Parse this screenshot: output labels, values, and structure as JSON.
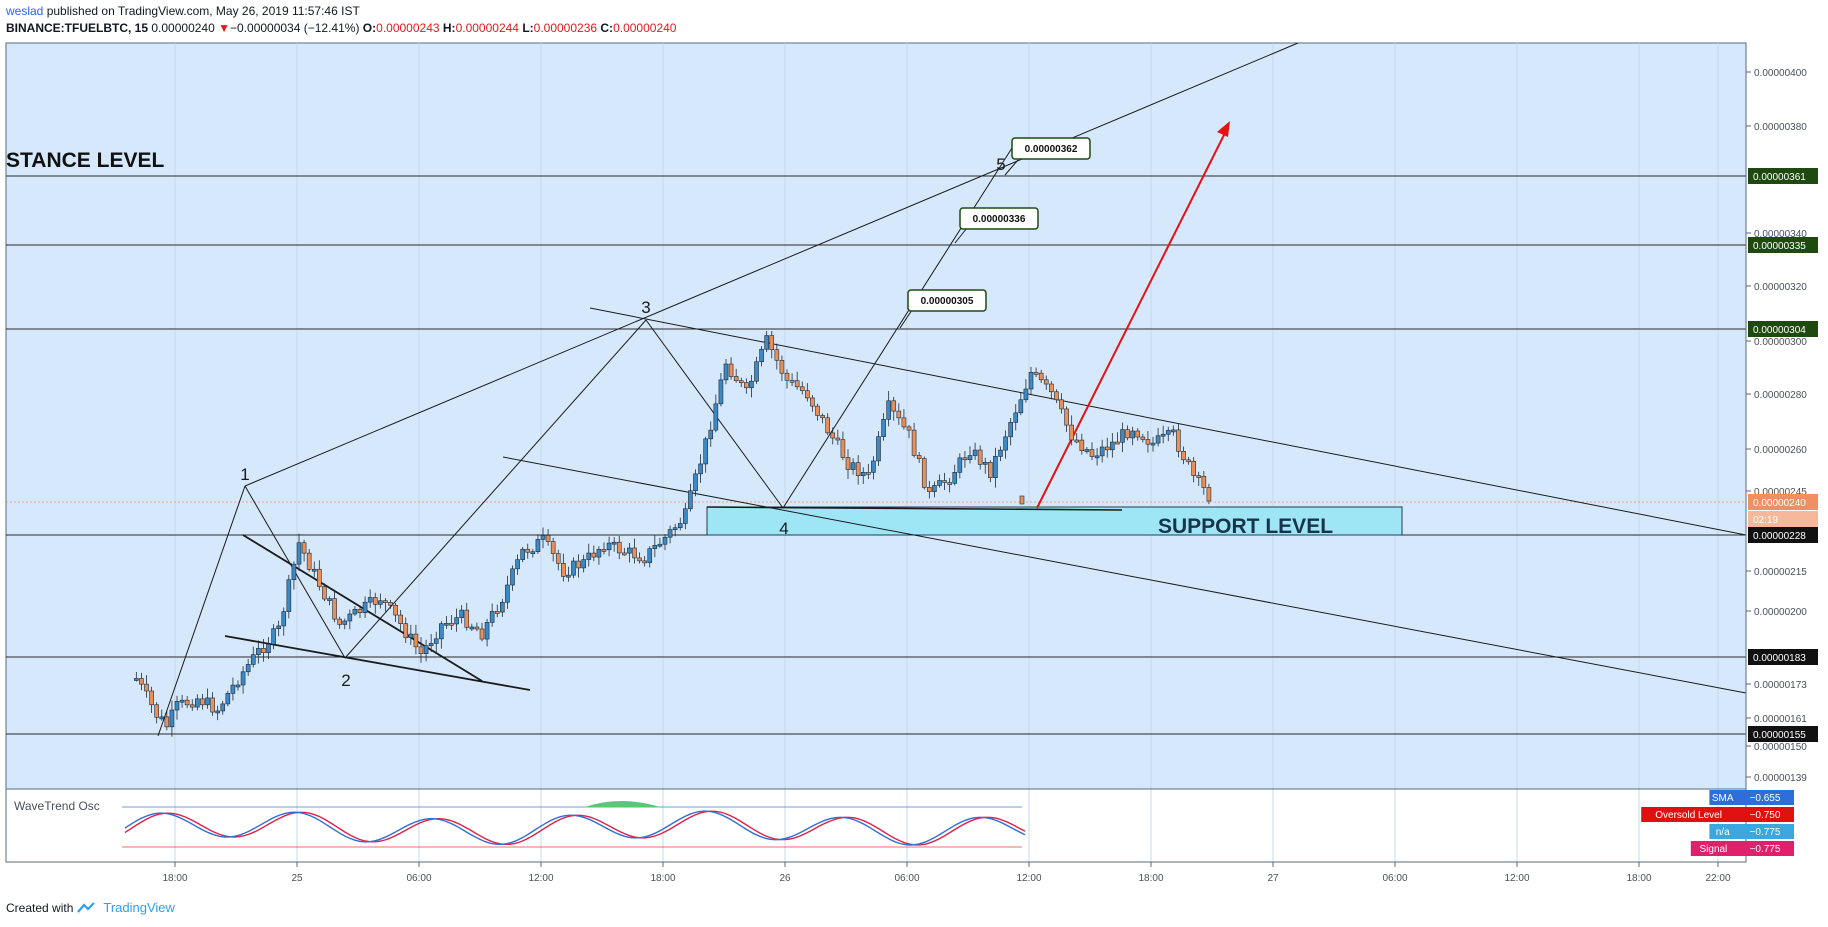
{
  "header": {
    "author": "weslad",
    "published_text": " published on TradingView.com, May 26, 2019 11:57:46 IST",
    "symbol": "BINANCE:TFUELBTC, 15",
    "last": "0.00000240",
    "change_arrow": "▼",
    "change": "−0.00000034 (−12.41%)",
    "o_label": "O:",
    "o_value": "0.00000243",
    "h_label": "H:",
    "h_value": "0.00000244",
    "l_label": "L:",
    "l_value": "0.00000236",
    "c_label": "C:",
    "c_value": "0.00000240"
  },
  "footer": {
    "created_with": "Created with",
    "brand": "TradingView"
  },
  "colors": {
    "bg": "#d6e8fb",
    "up": "#3d89c4",
    "down": "#e8905a",
    "grid": "#c6d8ea",
    "support_box": "#9ee6f5",
    "tag_dark": "#1e1e1e",
    "tag_green": "#1e4a10",
    "wt_blue": "#2d6fd6",
    "wt_red": "#e0204a",
    "arrow": "#e81010"
  },
  "chart_data": {
    "type": "candlestick",
    "title": "BINANCE:TFUELBTC, 15",
    "y_axis_ticks": [
      "0.00000400",
      "0.00000380",
      "0.00000340",
      "0.00000320",
      "0.00000300",
      "0.00000280",
      "0.00000260",
      "0.00000245",
      "0.00000215",
      "0.00000200",
      "0.00000173",
      "0.00000161",
      "0.00000150",
      "0.00000139"
    ],
    "x_axis_ticks": [
      "18:00",
      "25",
      "06:00",
      "12:00",
      "18:00",
      "26",
      "06:00",
      "12:00",
      "18:00",
      "27",
      "06:00",
      "12:00",
      "18:00",
      "22:00"
    ],
    "price_tags": [
      {
        "value": "0.00000361",
        "style": "dark-green"
      },
      {
        "value": "0.00000335",
        "style": "dark-green"
      },
      {
        "value": "0.00000304",
        "style": "dark-green"
      },
      {
        "value": "0.00000240",
        "style": "orange"
      },
      {
        "value": "02:19",
        "style": "orange-light"
      },
      {
        "value": "0.00000228",
        "style": "black"
      },
      {
        "value": "0.00000183",
        "style": "black"
      },
      {
        "value": "0.00000155",
        "style": "black"
      }
    ],
    "horizontal_levels": [
      3.61e-06,
      3.35e-06,
      3.04e-06,
      2.28e-06,
      1.83e-06,
      1.55e-06
    ],
    "current_price": 2.4e-06,
    "ylim": [
      1.35e-06,
      4.07e-06
    ],
    "annotations": {
      "resistance_text": "STANCE LEVEL",
      "support_text": "SUPPORT LEVEL",
      "wave_labels": [
        "1",
        "2",
        "3",
        "4",
        "5"
      ],
      "targets": [
        "0.00000305",
        "0.00000336",
        "0.00000362"
      ]
    },
    "close_path": [
      {
        "t": "24 16:00",
        "p": 1.75e-06
      },
      {
        "t": "24 17:00",
        "p": 1.62e-06
      },
      {
        "t": "24 17:30",
        "p": 1.58e-06
      },
      {
        "t": "24 18:00",
        "p": 1.65e-06
      },
      {
        "t": "24 19:00",
        "p": 1.68e-06
      },
      {
        "t": "24 20:00",
        "p": 1.64e-06
      },
      {
        "t": "24 21:00",
        "p": 1.75e-06
      },
      {
        "t": "24 22:00",
        "p": 1.85e-06
      },
      {
        "t": "24 23:00",
        "p": 1.93e-06
      },
      {
        "t": "25 00:00",
        "p": 2.25e-06
      },
      {
        "t": "25 01:00",
        "p": 2.1e-06
      },
      {
        "t": "25 02:00",
        "p": 1.95e-06
      },
      {
        "t": "25 03:00",
        "p": 2e-06
      },
      {
        "t": "25 04:00",
        "p": 2.05e-06
      },
      {
        "t": "25 05:00",
        "p": 1.95e-06
      },
      {
        "t": "25 06:00",
        "p": 1.84e-06
      },
      {
        "t": "25 07:00",
        "p": 1.95e-06
      },
      {
        "t": "25 08:00",
        "p": 1.98e-06
      },
      {
        "t": "25 09:00",
        "p": 1.92e-06
      },
      {
        "t": "25 10:00",
        "p": 2.05e-06
      },
      {
        "t": "25 11:00",
        "p": 2.22e-06
      },
      {
        "t": "25 12:00",
        "p": 2.26e-06
      },
      {
        "t": "25 13:00",
        "p": 2.15e-06
      },
      {
        "t": "25 14:00",
        "p": 2.18e-06
      },
      {
        "t": "25 15:00",
        "p": 2.25e-06
      },
      {
        "t": "25 16:00",
        "p": 2.22e-06
      },
      {
        "t": "25 17:00",
        "p": 2.2e-06
      },
      {
        "t": "25 18:00",
        "p": 2.27e-06
      },
      {
        "t": "25 19:00",
        "p": 2.35e-06
      },
      {
        "t": "25 20:00",
        "p": 2.62e-06
      },
      {
        "t": "25 21:00",
        "p": 2.92e-06
      },
      {
        "t": "25 22:00",
        "p": 2.8e-06
      },
      {
        "t": "25 23:00",
        "p": 3e-06
      },
      {
        "t": "26 00:00",
        "p": 2.85e-06
      },
      {
        "t": "26 01:00",
        "p": 2.8e-06
      },
      {
        "t": "26 02:00",
        "p": 2.67e-06
      },
      {
        "t": "26 03:00",
        "p": 2.55e-06
      },
      {
        "t": "26 04:00",
        "p": 2.5e-06
      },
      {
        "t": "26 05:00",
        "p": 2.75e-06
      },
      {
        "t": "26 06:00",
        "p": 2.65e-06
      },
      {
        "t": "26 07:00",
        "p": 2.43e-06
      },
      {
        "t": "26 08:00",
        "p": 2.5e-06
      },
      {
        "t": "26 09:00",
        "p": 2.6e-06
      },
      {
        "t": "26 10:00",
        "p": 2.52e-06
      },
      {
        "t": "26 11:00",
        "p": 2.7e-06
      },
      {
        "t": "26 12:00",
        "p": 2.88e-06
      },
      {
        "t": "26 13:00",
        "p": 2.8e-06
      },
      {
        "t": "26 14:00",
        "p": 2.65e-06
      },
      {
        "t": "26 15:00",
        "p": 2.58e-06
      },
      {
        "t": "26 16:00",
        "p": 2.62e-06
      },
      {
        "t": "26 17:00",
        "p": 2.68e-06
      },
      {
        "t": "26 18:00",
        "p": 2.62e-06
      },
      {
        "t": "26 19:00",
        "p": 2.65e-06
      },
      {
        "t": "26 20:00",
        "p": 2.5e-06
      },
      {
        "t": "26 21:00",
        "p": 2.4e-06
      }
    ],
    "indicator": {
      "name": "WaveTrend Osc",
      "legend": [
        {
          "label": "SMA",
          "value": "−0.655",
          "color": "#2d6fd6"
        },
        {
          "label": "Oversold Level",
          "value": "−0.750",
          "color": "#e01010"
        },
        {
          "label": "n/a",
          "value": "−0.775",
          "color": "#3aa7e0"
        },
        {
          "label": "Signal",
          "value": "−0.775",
          "color": "#e0206a"
        }
      ]
    }
  }
}
